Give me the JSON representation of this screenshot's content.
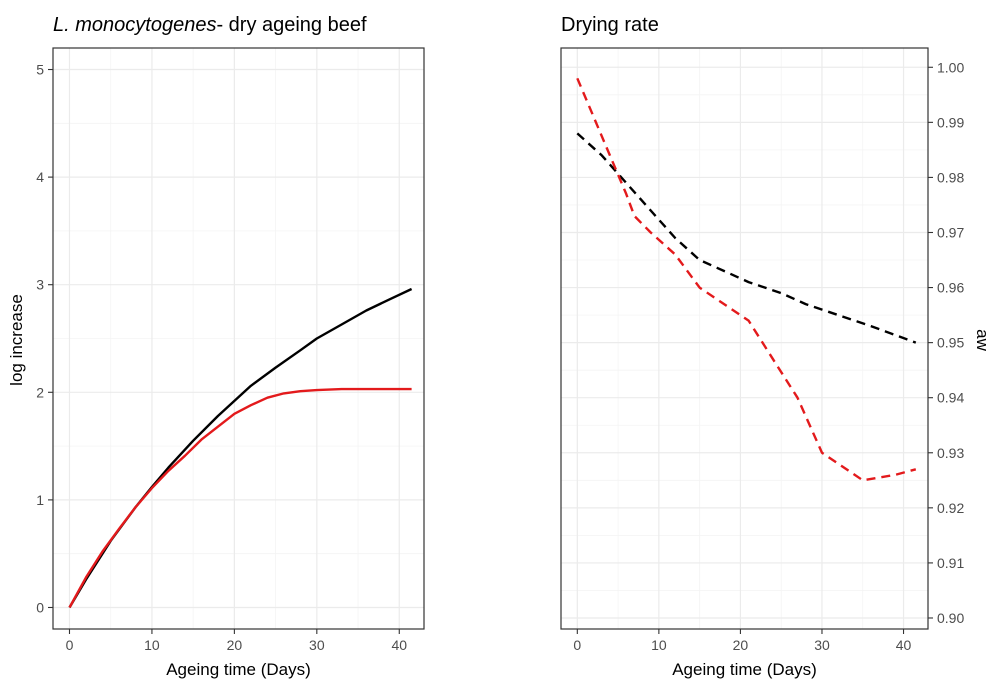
{
  "colors": {
    "black_series": "#000000",
    "red_series": "#e31a1c",
    "grid": "#ebebeb",
    "frame": "#333333"
  },
  "chart_data": [
    {
      "type": "line",
      "title_italic": "L. monocytogenes",
      "title_rest": "- dry ageing beef",
      "xlabel": "Ageing time (Days)",
      "ylabel": "log increase",
      "xlim": [
        -2,
        43
      ],
      "ylim": [
        -0.2,
        5.2
      ],
      "x_ticks": [
        0,
        10,
        20,
        30,
        40
      ],
      "y_ticks": [
        0,
        1,
        2,
        3,
        4,
        5
      ],
      "x_tick_labels": [
        "0",
        "10",
        "20",
        "30",
        "40"
      ],
      "y_tick_labels": [
        "0",
        "1",
        "2",
        "3",
        "4",
        "5"
      ],
      "y_axis_side": "left",
      "grid": true,
      "series": [
        {
          "color": "#000000",
          "dash": "solid",
          "x": [
            0,
            2,
            5,
            8,
            10,
            12,
            15,
            18,
            20,
            22,
            25,
            28,
            30,
            33,
            36,
            39,
            41.5
          ],
          "y": [
            0,
            0.26,
            0.62,
            0.93,
            1.12,
            1.3,
            1.55,
            1.78,
            1.92,
            2.06,
            2.23,
            2.39,
            2.5,
            2.63,
            2.76,
            2.87,
            2.96
          ]
        },
        {
          "color": "#e31a1c",
          "dash": "solid",
          "x": [
            0,
            2,
            4,
            6,
            8,
            10,
            12,
            14,
            16,
            18,
            20,
            22,
            24,
            26,
            28,
            30,
            33,
            36,
            41.5
          ],
          "y": [
            0,
            0.28,
            0.52,
            0.73,
            0.93,
            1.11,
            1.27,
            1.41,
            1.56,
            1.68,
            1.8,
            1.88,
            1.95,
            1.99,
            2.01,
            2.02,
            2.03,
            2.03,
            2.03
          ]
        }
      ]
    },
    {
      "type": "line",
      "title": "Drying rate",
      "xlabel": "Ageing time (Days)",
      "ylabel": "aw",
      "xlim": [
        -2,
        43
      ],
      "ylim": [
        0.898,
        1.0035
      ],
      "x_ticks": [
        0,
        10,
        20,
        30,
        40
      ],
      "y_ticks": [
        0.9,
        0.91,
        0.92,
        0.93,
        0.94,
        0.95,
        0.96,
        0.97,
        0.98,
        0.99,
        1.0
      ],
      "x_tick_labels": [
        "0",
        "10",
        "20",
        "30",
        "40"
      ],
      "y_tick_labels": [
        "0.90",
        "0.91",
        "0.92",
        "0.93",
        "0.94",
        "0.95",
        "0.96",
        "0.97",
        "0.98",
        "0.99",
        "1.00"
      ],
      "y_axis_side": "right",
      "grid": true,
      "series": [
        {
          "color": "#000000",
          "dash": "dashed",
          "x": [
            0,
            3,
            6,
            9,
            12,
            15,
            18,
            21,
            25,
            28,
            32,
            36,
            41.5
          ],
          "y": [
            0.988,
            0.984,
            0.979,
            0.974,
            0.969,
            0.965,
            0.963,
            0.961,
            0.959,
            0.957,
            0.955,
            0.953,
            0.95
          ]
        },
        {
          "color": "#e31a1c",
          "dash": "dashed",
          "x": [
            0,
            2,
            4,
            6,
            7,
            9,
            12,
            15,
            18,
            21,
            24,
            27,
            30,
            35,
            39,
            41.5
          ],
          "y": [
            0.998,
            0.991,
            0.984,
            0.977,
            0.973,
            0.97,
            0.966,
            0.96,
            0.957,
            0.954,
            0.947,
            0.94,
            0.93,
            0.925,
            0.926,
            0.927
          ]
        }
      ]
    }
  ]
}
